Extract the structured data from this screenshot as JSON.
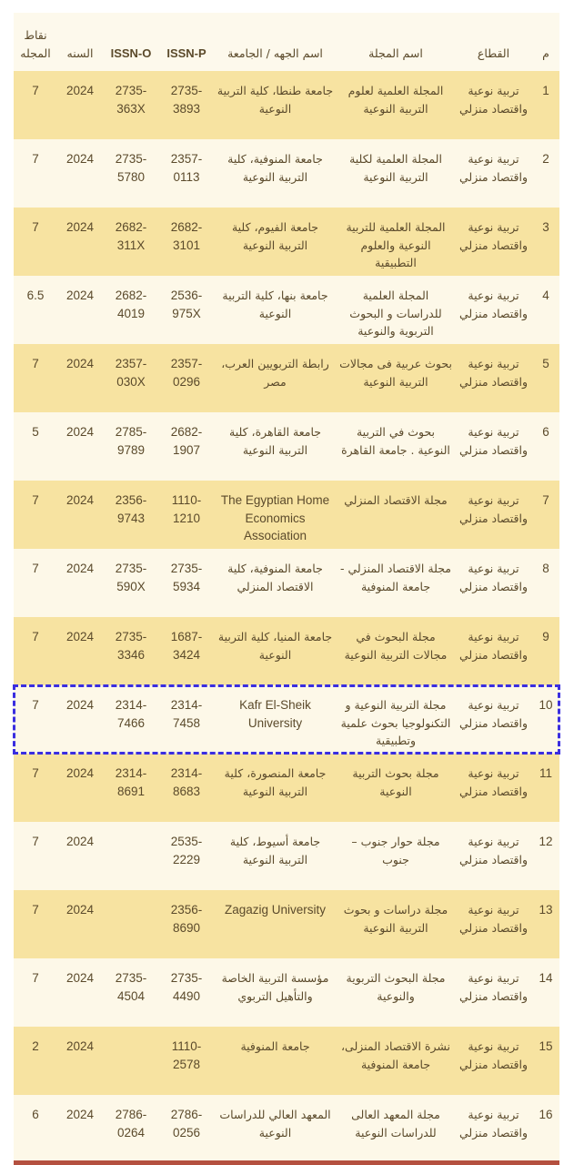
{
  "headers": {
    "no": "م",
    "sector": "القطاع",
    "journal": "اسم المجلة",
    "publisher": "اسم الجهه / الجامعة",
    "issn_p": "ISSN-P",
    "issn_o": "ISSN-O",
    "year": "السنه",
    "points": "نقاط المجله"
  },
  "colors": {
    "row_odd": "#f7e3a1",
    "row_even": "#fdf8e8",
    "text": "#5b4a2b",
    "highlight_border": "#3a2ee0",
    "bottom_bar": "#b4503f"
  },
  "highlighted_row": 10,
  "rows": [
    {
      "no": "1",
      "sector": "تربية نوعية واقتصاد منزلي",
      "journal": "المجلة العلمية لعلوم التربية النوعية",
      "publisher": "جامعة طنطا، كلية التربية النوعية",
      "issn_p": "2735-3893",
      "issn_o": "2735-363X",
      "year": "2024",
      "points": "7"
    },
    {
      "no": "2",
      "sector": "تربية نوعية واقتصاد منزلي",
      "journal": "المجلة العلمية لكلية التربية النوعية",
      "publisher": "جامعة المنوفية، كلية التربية النوعية",
      "issn_p": "2357-0113",
      "issn_o": "2735-5780",
      "year": "2024",
      "points": "7"
    },
    {
      "no": "3",
      "sector": "تربية نوعية واقتصاد منزلي",
      "journal": "المجلة العلمية للتربية النوعية والعلوم التطبيقية",
      "publisher": "جامعة الفيوم، كلية التربية النوعية",
      "issn_p": "2682-3101",
      "issn_o": "2682-311X",
      "year": "2024",
      "points": "7"
    },
    {
      "no": "4",
      "sector": "تربية نوعية واقتصاد منزلي",
      "journal": "المجلة العلمية للدراسات و البحوث التربوية والنوعية",
      "publisher": "جامعة بنها، كلية التربية النوعية",
      "issn_p": "2536-975X",
      "issn_o": "2682-4019",
      "year": "2024",
      "points": "6.5"
    },
    {
      "no": "5",
      "sector": "تربية نوعية واقتصاد منزلي",
      "journal": "بحوث عربية فى مجالات التربية النوعية",
      "publisher": "رابطة التربويين العرب، مصر",
      "issn_p": "2357-0296",
      "issn_o": "2357-030X",
      "year": "2024",
      "points": "7"
    },
    {
      "no": "6",
      "sector": "تربية نوعية واقتصاد منزلي",
      "journal": "بحوث في التربية النوعية . جامعة القاهرة",
      "publisher": "جامعة القاهرة، كلية التربية النوعية",
      "issn_p": "2682-1907",
      "issn_o": "2785-9789",
      "year": "2024",
      "points": "5"
    },
    {
      "no": "7",
      "sector": "تربية نوعية واقتصاد منزلي",
      "journal": "مجلة الاقتصاد المنزلي",
      "publisher": "The Egyptian Home Economics Association",
      "issn_p": "1110-1210",
      "issn_o": "2356-9743",
      "year": "2024",
      "points": "7"
    },
    {
      "no": "8",
      "sector": "تربية نوعية واقتصاد منزلي",
      "journal": "مجلة الاقتصاد المنزلي - جامعة المنوفية",
      "publisher": "جامعة المنوفية، كلية الاقتصاد المنزلي",
      "issn_p": "2735-5934",
      "issn_o": "2735-590X",
      "year": "2024",
      "points": "7"
    },
    {
      "no": "9",
      "sector": "تربية نوعية واقتصاد منزلي",
      "journal": "مجلة البحوث في مجالات التربية النوعية",
      "publisher": "جامعة المنيا، كلية التربية النوعية",
      "issn_p": "1687-3424",
      "issn_o": "2735-3346",
      "year": "2024",
      "points": "7"
    },
    {
      "no": "10",
      "sector": "تربية نوعية واقتصاد منزلي",
      "journal": "مجلة التربية النوعية و التكنولوجيا بحوث علمية وتطبيقية",
      "publisher": "Kafr El-Sheik University",
      "issn_p": "2314-7458",
      "issn_o": "2314-7466",
      "year": "2024",
      "points": "7"
    },
    {
      "no": "11",
      "sector": "تربية نوعية واقتصاد منزلي",
      "journal": "مجلة بحوث التربية النوعية",
      "publisher": "جامعة المنصورة، كلية التربية النوعية",
      "issn_p": "2314-8683",
      "issn_o": "2314-8691",
      "year": "2024",
      "points": "7"
    },
    {
      "no": "12",
      "sector": "تربية نوعية واقتصاد منزلي",
      "journal": "مجلة حوار جنوب – جنوب",
      "publisher": "جامعة أسيوط، كلية التربية النوعية",
      "issn_p": "2535-2229",
      "issn_o": "",
      "year": "2024",
      "points": "7"
    },
    {
      "no": "13",
      "sector": "تربية نوعية واقتصاد منزلي",
      "journal": "مجلة دراسات و بحوث التربية النوعية",
      "publisher": "Zagazig University",
      "issn_p": "2356-8690",
      "issn_o": "",
      "year": "2024",
      "points": "7"
    },
    {
      "no": "14",
      "sector": "تربية نوعية واقتصاد منزلي",
      "journal": "مجلة البحوث التربوية والنوعية",
      "publisher": "مؤسسة التربية الخاصة والتأهيل التربوي",
      "issn_p": "2735-4490",
      "issn_o": "2735-4504",
      "year": "2024",
      "points": "7"
    },
    {
      "no": "15",
      "sector": "تربية نوعية واقتصاد منزلي",
      "journal": "نشرة الاقتصاد المنزلى، جامعة المنوفية",
      "publisher": "جامعة المنوفية",
      "issn_p": "1110-2578",
      "issn_o": "",
      "year": "2024",
      "points": "2"
    },
    {
      "no": "16",
      "sector": "تربية نوعية واقتصاد منزلي",
      "journal": "مجلة المعهد العالى للدراسات النوعية",
      "publisher": "المعهد العالي للدراسات النوعية",
      "issn_p": "2786-0256",
      "issn_o": "2786-0264",
      "year": "2024",
      "points": "6"
    }
  ]
}
